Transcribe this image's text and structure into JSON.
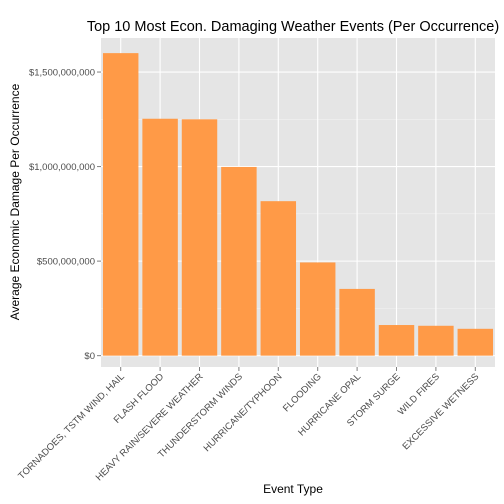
{
  "chart_data": {
    "type": "bar",
    "title": "Top 10 Most Econ. Damaging Weather Events (Per Occurrence)",
    "xlabel": "Event Type",
    "ylabel": "Average Economic Damage Per Occurrence",
    "categories": [
      "TORNADOES, TSTM WIND, HAIL",
      "FLASH FLOOD",
      "HEAVY RAIN/SEVERE WEATHER",
      "THUNDERSTORM WINDS",
      "HURRICANE/TYPHOON",
      "FLOODING",
      "HURRICANE OPAL",
      "STORM SURGE",
      "WILD FIRES",
      "EXCESSIVE WETNESS"
    ],
    "values": [
      1600000000,
      1253000000,
      1250000000,
      998000000,
      817000000,
      493000000,
      353000000,
      162000000,
      158000000,
      142000000
    ],
    "ylim": [
      -60000000,
      1680000000
    ],
    "yticks": [
      0,
      500000000,
      1000000000,
      1500000000
    ],
    "ytick_labels": [
      "$0",
      "$500,000,000",
      "$1,000,000,000",
      "$1,500,000,000"
    ],
    "grid": true,
    "colors": {
      "bar": "#FF9A47",
      "panel": "#E5E5E5",
      "grid_major": "#FFFFFF",
      "grid_minor": "#F2F2F2",
      "tick_text": "#4D4D4D"
    }
  }
}
